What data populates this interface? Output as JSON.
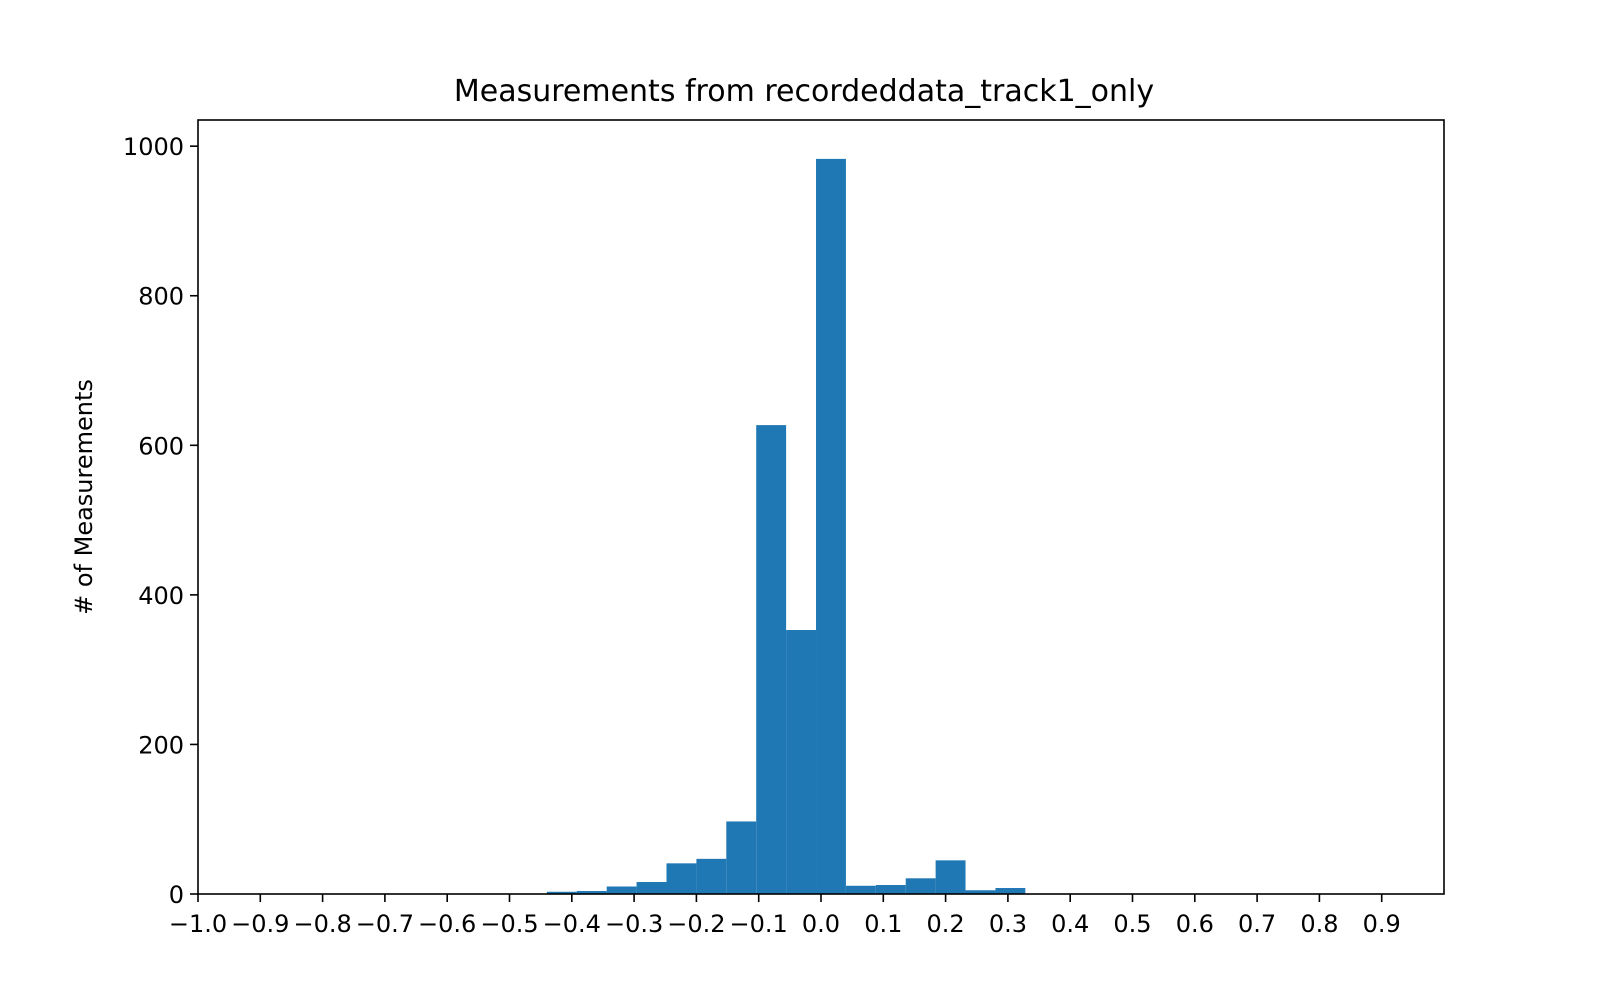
{
  "chart_data": {
    "type": "bar",
    "title": "Measurements from recordeddata_track1_only",
    "xlabel": "",
    "ylabel": "# of Measurements",
    "xlim": [
      -1.0,
      1.0
    ],
    "ylim": [
      0,
      1035
    ],
    "grid": false,
    "color": "#1f77b4",
    "bin_width": 0.048,
    "bins": [
      {
        "x0": -0.44,
        "value": 3
      },
      {
        "x0": -0.392,
        "value": 4
      },
      {
        "x0": -0.344,
        "value": 10
      },
      {
        "x0": -0.296,
        "value": 16
      },
      {
        "x0": -0.248,
        "value": 41
      },
      {
        "x0": -0.2,
        "value": 47
      },
      {
        "x0": -0.152,
        "value": 97
      },
      {
        "x0": -0.104,
        "value": 627
      },
      {
        "x0": -0.056,
        "value": 353
      },
      {
        "x0": -0.008,
        "value": 983
      },
      {
        "x0": 0.04,
        "value": 11
      },
      {
        "x0": 0.088,
        "value": 12
      },
      {
        "x0": 0.136,
        "value": 21
      },
      {
        "x0": 0.184,
        "value": 45
      },
      {
        "x0": 0.232,
        "value": 5
      },
      {
        "x0": 0.28,
        "value": 8
      }
    ],
    "x_ticks": [
      -1.0,
      -0.9,
      -0.8,
      -0.7,
      -0.6,
      -0.5,
      -0.4,
      -0.3,
      -0.2,
      -0.1,
      0.0,
      0.1,
      0.2,
      0.3,
      0.4,
      0.5,
      0.6,
      0.7,
      0.8,
      0.9
    ],
    "x_tick_labels": [
      "−1.0",
      "−0.9",
      "−0.8",
      "−0.7",
      "−0.6",
      "−0.5",
      "−0.4",
      "−0.3",
      "−0.2",
      "−0.1",
      "0.0",
      "0.1",
      "0.2",
      "0.3",
      "0.4",
      "0.5",
      "0.6",
      "0.7",
      "0.8",
      "0.9"
    ],
    "y_ticks": [
      0,
      200,
      400,
      600,
      800,
      1000
    ],
    "y_tick_labels": [
      "0",
      "200",
      "400",
      "600",
      "800",
      "1000"
    ]
  }
}
